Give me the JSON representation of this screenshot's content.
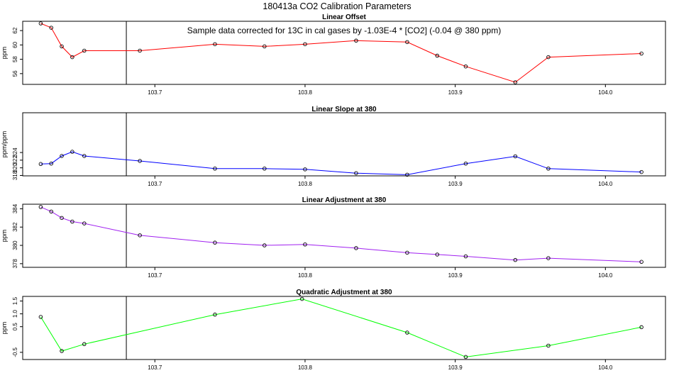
{
  "figure": {
    "title": "180413a   CO2 Calibration Parameters",
    "note": "Sample data corrected for 13C in cal gases by -1.03E-4 * [CO2] (-0.04 @ 380 ppm)"
  },
  "chart_data": [
    {
      "type": "line",
      "title": "Linear Offset",
      "ylabel": "ppm",
      "color": "#ff0000",
      "xlim": [
        103.612,
        104.04
      ],
      "ylim": [
        54.5,
        63.3
      ],
      "xticks": [
        103.7,
        103.8,
        103.9,
        104.0
      ],
      "xtick_labels": [
        "103.7",
        "103.8",
        "103.9",
        "104.0"
      ],
      "yticks": [
        56,
        58,
        60,
        62
      ],
      "ytick_labels": [
        "56",
        "58",
        "60",
        "62"
      ],
      "vline_x": 103.681,
      "x": [
        103.624,
        103.631,
        103.638,
        103.645,
        103.653,
        103.69,
        103.74,
        103.773,
        103.8,
        103.834,
        103.868,
        103.888,
        103.907,
        103.94,
        103.962,
        104.024
      ],
      "y": [
        63.0,
        62.4,
        59.8,
        58.3,
        59.2,
        59.2,
        60.1,
        59.8,
        60.1,
        60.6,
        60.4,
        58.5,
        57.0,
        54.8,
        58.3,
        58.8
      ]
    },
    {
      "type": "line",
      "title": "Linear Slope at 380",
      "ylabel": "ppm/ppm",
      "color": "#0000ff",
      "xlim": [
        103.612,
        104.04
      ],
      "ylim": [
        317.9,
        334.4
      ],
      "xticks": [
        103.7,
        103.8,
        103.9,
        104.0
      ],
      "xtick_labels": [
        "103.7",
        "103.8",
        "103.9",
        "104.0"
      ],
      "yticks": [
        318,
        320,
        322,
        324
      ],
      "ytick_labels": [
        "318",
        "320",
        "322",
        "324"
      ],
      "vline_x": 103.681,
      "x": [
        103.624,
        103.631,
        103.638,
        103.645,
        103.653,
        103.69,
        103.74,
        103.773,
        103.8,
        103.834,
        103.868,
        103.907,
        103.94,
        103.962,
        104.024
      ],
      "y": [
        321.0,
        321.1,
        323.1,
        324.2,
        323.1,
        321.8,
        319.8,
        319.8,
        319.6,
        318.6,
        318.2,
        321.1,
        323.0,
        319.8,
        318.9
      ]
    },
    {
      "type": "line",
      "title": "Linear Adjustment at 380",
      "ylabel": "ppm",
      "color": "#a020f0",
      "xlim": [
        103.612,
        104.04
      ],
      "ylim": [
        377.6,
        384.5
      ],
      "xticks": [
        103.7,
        103.8,
        103.9,
        104.0
      ],
      "xtick_labels": [
        "103.7",
        "103.8",
        "103.9",
        "104.0"
      ],
      "yticks": [
        378,
        380,
        382,
        384
      ],
      "ytick_labels": [
        "378",
        "380",
        "382",
        "384"
      ],
      "vline_x": 103.681,
      "x": [
        103.624,
        103.631,
        103.638,
        103.645,
        103.653,
        103.69,
        103.74,
        103.773,
        103.8,
        103.834,
        103.868,
        103.888,
        103.907,
        103.94,
        103.962,
        104.024
      ],
      "y": [
        384.2,
        383.7,
        383.0,
        382.6,
        382.4,
        381.1,
        380.3,
        380.0,
        380.1,
        379.7,
        379.2,
        379.0,
        378.8,
        378.4,
        378.6,
        378.2
      ]
    },
    {
      "type": "line",
      "title": "Quadratic Adjustment at 380",
      "ylabel": "ppm",
      "color": "#00ff00",
      "xlim": [
        103.612,
        104.04
      ],
      "ylim": [
        -0.78,
        1.68
      ],
      "xticks": [
        103.7,
        103.8,
        103.9,
        104.0
      ],
      "xtick_labels": [
        "103.7",
        "103.8",
        "103.9",
        "104.0"
      ],
      "yticks": [
        -0.5,
        0.5,
        1.0,
        1.5
      ],
      "ytick_labels": [
        "-0.5",
        "0.5",
        "1.0",
        "1.5"
      ],
      "vline_x": 103.681,
      "x": [
        103.624,
        103.638,
        103.653,
        103.74,
        103.798,
        103.868,
        103.907,
        103.962,
        104.024
      ],
      "y": [
        0.88,
        -0.45,
        -0.18,
        0.97,
        1.58,
        0.27,
        -0.68,
        -0.24,
        0.48
      ]
    }
  ]
}
